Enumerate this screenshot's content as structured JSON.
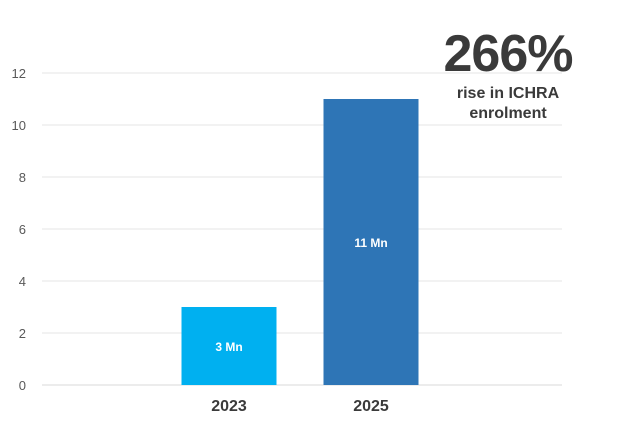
{
  "callout": {
    "percent": "266%",
    "line1": "rise in ICHRA",
    "line2": "enrolment"
  },
  "chart_data": {
    "type": "bar",
    "categories": [
      "2023",
      "2025"
    ],
    "values": [
      3,
      11
    ],
    "data_labels": [
      "3 Mn",
      "11 Mn"
    ],
    "colors": [
      "#00B0F0",
      "#2E75B6"
    ],
    "title": "",
    "xlabel": "",
    "ylabel": "",
    "ylim": [
      0,
      12
    ],
    "yticks": [
      0,
      2,
      4,
      6,
      8,
      10,
      12
    ],
    "grid": true,
    "legend": "none"
  }
}
